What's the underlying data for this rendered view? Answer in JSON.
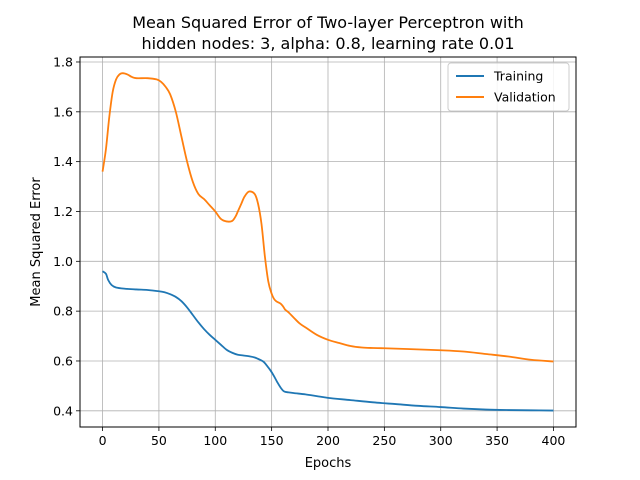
{
  "chart_data": {
    "type": "line",
    "title_lines": [
      "Mean Squared Error of Two-layer Perceptron with",
      "hidden nodes: 3, alpha: 0.8, learning rate 0.01"
    ],
    "xlabel": "Epochs",
    "ylabel": "Mean Squared Error",
    "xlim": [
      -20,
      420
    ],
    "ylim": [
      0.335,
      1.82
    ],
    "xticks": [
      0,
      50,
      100,
      150,
      200,
      250,
      300,
      350,
      400
    ],
    "yticks": [
      0.4,
      0.6,
      0.8,
      1.0,
      1.2,
      1.4,
      1.6,
      1.8
    ],
    "ytick_labels": [
      "0.4",
      "0.6",
      "0.8",
      "1.0",
      "1.2",
      "1.4",
      "1.6",
      "1.8"
    ],
    "grid": true,
    "legend_position": "top-right",
    "series": [
      {
        "name": "Training",
        "color": "#1f77b4",
        "x": [
          0,
          3,
          5,
          8,
          12,
          20,
          30,
          40,
          50,
          55,
          60,
          65,
          70,
          75,
          80,
          85,
          90,
          95,
          100,
          105,
          110,
          115,
          120,
          125,
          130,
          135,
          140,
          143,
          146,
          149,
          152,
          155,
          158,
          161,
          165,
          170,
          180,
          190,
          200,
          220,
          240,
          260,
          280,
          300,
          320,
          340,
          360,
          380,
          400
        ],
        "y": [
          0.96,
          0.95,
          0.925,
          0.905,
          0.895,
          0.89,
          0.887,
          0.885,
          0.88,
          0.876,
          0.868,
          0.857,
          0.84,
          0.815,
          0.785,
          0.755,
          0.728,
          0.705,
          0.685,
          0.665,
          0.645,
          0.633,
          0.625,
          0.622,
          0.619,
          0.614,
          0.604,
          0.596,
          0.58,
          0.562,
          0.54,
          0.515,
          0.493,
          0.478,
          0.474,
          0.471,
          0.466,
          0.459,
          0.452,
          0.443,
          0.434,
          0.427,
          0.42,
          0.415,
          0.409,
          0.405,
          0.403,
          0.402,
          0.401
        ]
      },
      {
        "name": "Validation",
        "color": "#ff7f0e",
        "x": [
          0,
          3,
          6,
          9,
          12,
          15,
          18,
          22,
          26,
          30,
          40,
          48,
          52,
          56,
          60,
          65,
          70,
          75,
          80,
          85,
          90,
          95,
          100,
          105,
          110,
          115,
          118,
          120,
          123,
          126,
          130,
          135,
          138,
          141,
          144,
          147,
          150,
          152,
          154,
          156,
          158,
          160,
          162,
          165,
          170,
          175,
          180,
          190,
          200,
          210,
          220,
          230,
          240,
          250,
          270,
          300,
          320,
          340,
          360,
          380,
          400
        ],
        "y": [
          1.36,
          1.45,
          1.58,
          1.68,
          1.73,
          1.75,
          1.755,
          1.75,
          1.74,
          1.735,
          1.735,
          1.73,
          1.72,
          1.7,
          1.67,
          1.6,
          1.5,
          1.4,
          1.32,
          1.27,
          1.25,
          1.225,
          1.2,
          1.17,
          1.16,
          1.162,
          1.18,
          1.2,
          1.23,
          1.26,
          1.28,
          1.27,
          1.23,
          1.15,
          1.02,
          0.92,
          0.87,
          0.85,
          0.84,
          0.835,
          0.83,
          0.82,
          0.806,
          0.795,
          0.772,
          0.75,
          0.735,
          0.705,
          0.685,
          0.672,
          0.66,
          0.654,
          0.652,
          0.651,
          0.648,
          0.643,
          0.638,
          0.628,
          0.618,
          0.605,
          0.598
        ]
      }
    ]
  }
}
